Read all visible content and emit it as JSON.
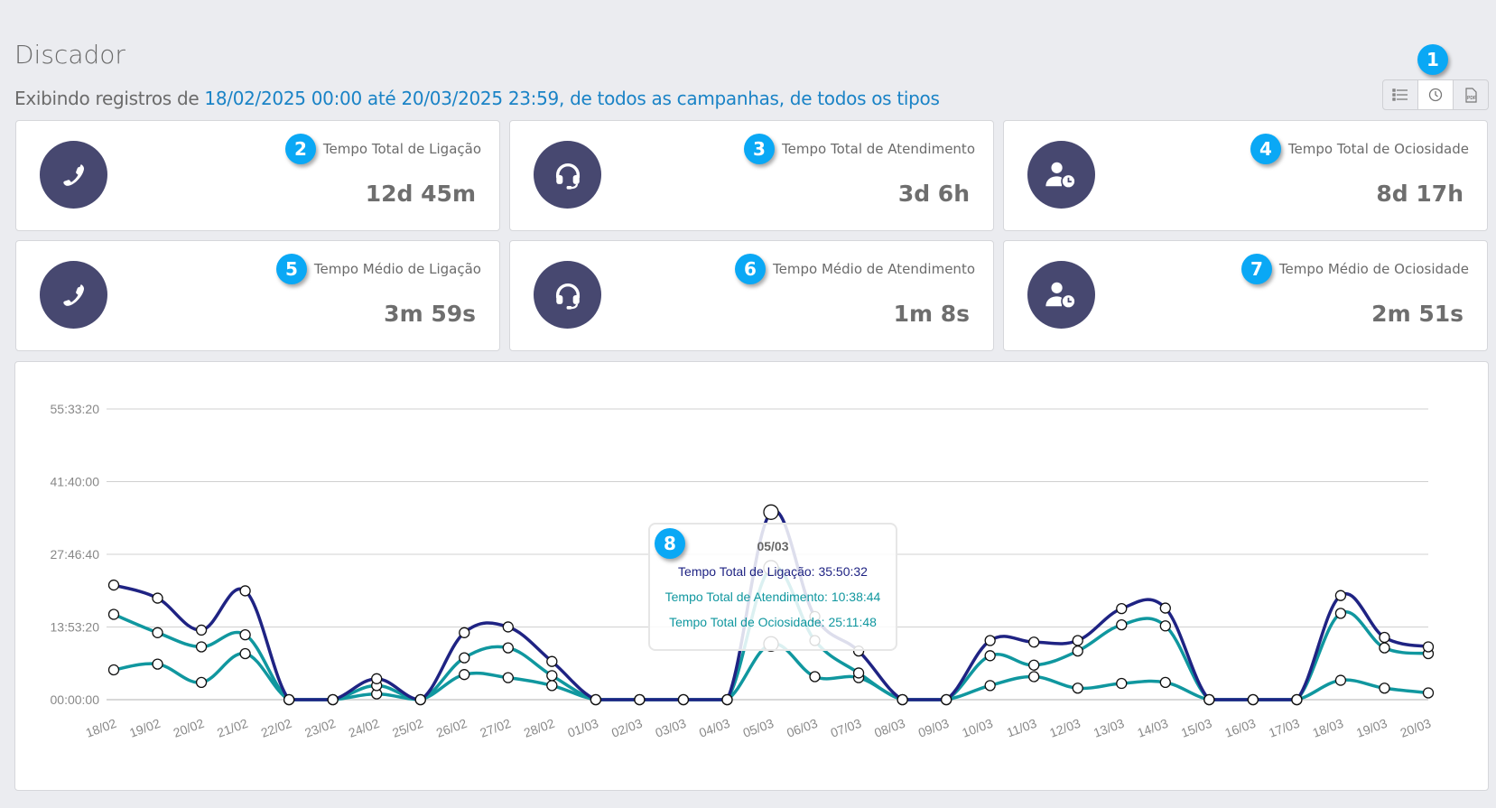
{
  "header": {
    "title": "Discador",
    "subtitle_prefix": "Exibindo registros de ",
    "date_range": "18/02/2025 00:00 até 20/03/2025 23:59",
    "campaigns": ", de todos as campanhas",
    "types": ", de todos os tipos"
  },
  "toolbar": {
    "badge": "1",
    "buttons": [
      {
        "icon": "list-icon"
      },
      {
        "icon": "clock-icon"
      },
      {
        "icon": "pdf-icon"
      }
    ]
  },
  "cards": [
    {
      "badge": "2",
      "label": "Tempo Total de Ligação",
      "value": "12d 45m",
      "icon": "phone-icon"
    },
    {
      "badge": "3",
      "label": "Tempo Total de Atendimento",
      "value": "3d 6h",
      "icon": "headset-icon"
    },
    {
      "badge": "4",
      "label": "Tempo Total de Ociosidade",
      "value": "8d 17h",
      "icon": "user-clock-icon"
    },
    {
      "badge": "5",
      "label": "Tempo Médio de Ligação",
      "value": "3m 59s",
      "icon": "phone-icon"
    },
    {
      "badge": "6",
      "label": "Tempo Médio de Atendimento",
      "value": "1m 8s",
      "icon": "headset-icon"
    },
    {
      "badge": "7",
      "label": "Tempo Médio de Ociosidade",
      "value": "2m 51s",
      "icon": "user-clock-icon"
    }
  ],
  "colors": {
    "accent": "#1a83c6",
    "badge": "#0aa8f5",
    "icon_bg": "#474870",
    "ligacao": "#1f2383",
    "atendimento": "#10979f",
    "ociosidade": "#10979f"
  },
  "tooltip": {
    "badge": "8",
    "date": "05/03",
    "rows": [
      "Tempo Total de Ligação: 35:50:32",
      "Tempo Total de Atendimento: 10:38:44",
      "Tempo Total de Ociosidade: 25:11:48"
    ]
  },
  "chart_data": {
    "type": "line",
    "categories": [
      "18/02",
      "19/02",
      "20/02",
      "21/02",
      "22/02",
      "23/02",
      "24/02",
      "25/02",
      "26/02",
      "27/02",
      "28/02",
      "01/03",
      "02/03",
      "03/03",
      "04/03",
      "05/03",
      "06/03",
      "07/03",
      "08/03",
      "09/03",
      "10/03",
      "11/03",
      "12/03",
      "13/03",
      "14/03",
      "15/03",
      "16/03",
      "17/03",
      "18/03",
      "19/03",
      "20/03"
    ],
    "yunit": "hours",
    "ylim": [
      0,
      55.56
    ],
    "yticks": [
      {
        "v": 0,
        "label": "00:00:00"
      },
      {
        "v": 13.89,
        "label": "13:53:20"
      },
      {
        "v": 27.78,
        "label": "27:46:40"
      },
      {
        "v": 41.67,
        "label": "41:40:00"
      },
      {
        "v": 55.56,
        "label": "55:33:20"
      }
    ],
    "grid": true,
    "series": [
      {
        "name": "Tempo Total de Ligação",
        "color": "#1f2383",
        "values": [
          21.9,
          19.4,
          13.3,
          20.8,
          0,
          0,
          4.0,
          0,
          12.8,
          13.9,
          7.3,
          0,
          0,
          0,
          0,
          35.84,
          15.9,
          9.3,
          0,
          0,
          11.3,
          11.0,
          11.3,
          17.4,
          17.5,
          0,
          0,
          0,
          19.9,
          11.9,
          10.1
        ]
      },
      {
        "name": "Tempo Total de Ociosidade",
        "color": "#10979f",
        "values": [
          16.3,
          12.8,
          10.1,
          12.4,
          0,
          0,
          2.7,
          0,
          8.0,
          9.9,
          4.6,
          0,
          0,
          0,
          0,
          25.2,
          11.3,
          5.1,
          0,
          0,
          8.4,
          6.6,
          9.3,
          14.3,
          14.1,
          0,
          0,
          0,
          16.5,
          9.9,
          8.8
        ]
      },
      {
        "name": "Tempo Total de Atendimento",
        "color": "#10979f",
        "values": [
          5.7,
          6.8,
          3.3,
          8.8,
          0,
          0,
          1.1,
          0,
          4.8,
          4.2,
          2.7,
          0,
          0,
          0,
          0,
          10.65,
          4.4,
          4.2,
          0,
          0,
          2.7,
          4.4,
          2.2,
          3.1,
          3.3,
          0,
          0,
          0,
          3.7,
          2.2,
          1.3
        ]
      }
    ],
    "highlight": "05/03"
  }
}
